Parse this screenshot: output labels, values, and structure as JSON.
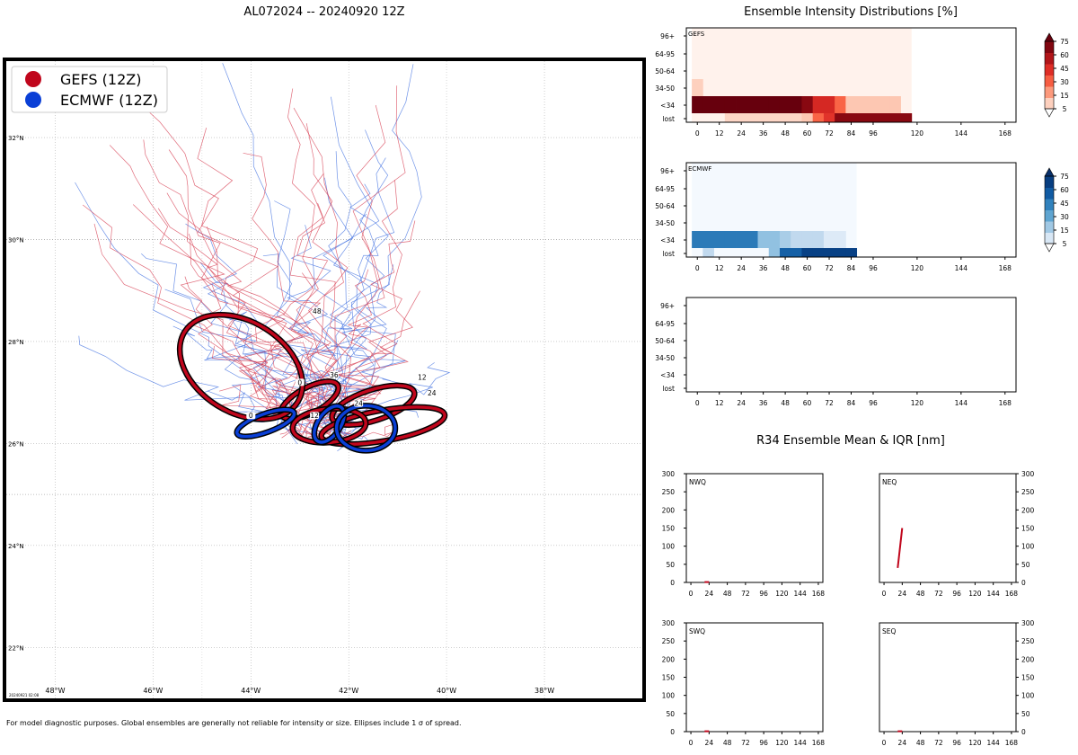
{
  "storm_title": "AL072024 -- 20240920 12Z",
  "footnote": "For model diagnostic purposes. Global ensembles are generally not reliable for intensity or size. Ellipses include 1 σ of spread.",
  "run_stamp": "20240921 02:08",
  "colors": {
    "gefs": "#c0061c",
    "ecmwf": "#0a3fd6",
    "gefs_track": "#d63a4e",
    "ecmwf_track": "#3f6fe0",
    "grid": "#b0b0b0"
  },
  "chart_data": [
    {
      "type": "map",
      "title": "AL072024 -- 20240920 12Z",
      "xlim": [
        -49,
        -36
      ],
      "ylim": [
        21,
        33.5
      ],
      "lon_ticks": [
        -48,
        -46,
        -44,
        -42,
        -40,
        -38
      ],
      "lon_tick_labels": [
        "48°W",
        "46°W",
        "44°W",
        "42°W",
        "40°W",
        "38°W"
      ],
      "lat_ticks": [
        22,
        24,
        26,
        28,
        30,
        32
      ],
      "lat_tick_labels": [
        "22°N",
        "24°N",
        "26°N",
        "28°N",
        "30°N",
        "32°N"
      ],
      "legend": {
        "placement": "top-left",
        "entries": [
          {
            "name": "GEFS (12Z)",
            "color": "#c0061c"
          },
          {
            "name": "ECMWF (12Z)",
            "color": "#0a3fd6"
          }
        ]
      },
      "ellipses": [
        {
          "model": "GEFS",
          "hour": "0",
          "lon": -42.8,
          "lat": 26.85,
          "rx_deg": 0.65,
          "ry_deg": 0.25,
          "angle": -28
        },
        {
          "model": "GEFS",
          "hour": "12",
          "lon": -41.5,
          "lat": 26.75,
          "rx_deg": 0.88,
          "ry_deg": 0.3,
          "angle": -18
        },
        {
          "model": "GEFS",
          "hour": "24",
          "lon": -41.3,
          "lat": 26.35,
          "rx_deg": 1.28,
          "ry_deg": 0.3,
          "angle": -10
        },
        {
          "model": "GEFS",
          "hour": "36",
          "lon": -42.4,
          "lat": 26.35,
          "rx_deg": 0.75,
          "ry_deg": 0.33,
          "angle": -5
        },
        {
          "model": "GEFS",
          "hour": "48",
          "lon": -44.2,
          "lat": 27.5,
          "rx_deg": 1.36,
          "ry_deg": 0.89,
          "angle": 32
        },
        {
          "model": "ECMWF",
          "hour": "0",
          "lon": -43.7,
          "lat": 26.4,
          "rx_deg": 0.62,
          "ry_deg": 0.18,
          "angle": -20
        },
        {
          "model": "ECMWF",
          "hour": "12",
          "lon": -42.4,
          "lat": 26.38,
          "rx_deg": 0.42,
          "ry_deg": 0.22,
          "angle": -55
        },
        {
          "model": "ECMWF",
          "hour": "24",
          "lon": -41.65,
          "lat": 26.3,
          "rx_deg": 0.6,
          "ry_deg": 0.44,
          "angle": 0
        }
      ],
      "ellipse_labels": [
        {
          "text": "0",
          "lon": -43.0,
          "lat": 27.2
        },
        {
          "text": "12",
          "lon": -40.5,
          "lat": 27.3
        },
        {
          "text": "24",
          "lon": -40.3,
          "lat": 26.99
        },
        {
          "text": "36",
          "lon": -42.3,
          "lat": 27.35
        },
        {
          "text": "48",
          "lon": -42.65,
          "lat": 28.6
        },
        {
          "text": "0",
          "lon": -44.0,
          "lat": 26.55
        },
        {
          "text": "12",
          "lon": -42.7,
          "lat": 26.55
        },
        {
          "text": "24",
          "lon": -41.8,
          "lat": 26.79
        }
      ]
    },
    {
      "type": "heatmap",
      "title": "Ensemble Intensity Distributions [%]",
      "panels": [
        {
          "label": "GEFS",
          "cmap": "reds",
          "x_ticks": [
            0,
            12,
            24,
            36,
            48,
            60,
            72,
            84,
            96,
            120,
            144,
            168
          ],
          "y_categories": [
            "lost",
            "<34",
            "34-50",
            "50-64",
            "64-95",
            "96+"
          ],
          "x_bins": [
            0,
            6,
            12,
            18,
            24,
            30,
            36,
            42,
            48,
            54,
            60,
            66,
            72,
            78,
            84,
            90,
            96,
            102,
            108,
            114
          ],
          "values": [
            [
              0,
              0,
              0,
              10,
              10,
              10,
              10,
              10,
              10,
              10,
              15,
              40,
              55,
              85,
              85,
              85,
              85,
              85,
              85,
              85
            ],
            [
              95,
              95,
              95,
              95,
              95,
              95,
              95,
              95,
              95,
              95,
              85,
              60,
              60,
              40,
              15,
              15,
              15,
              15,
              15,
              0
            ],
            [
              12,
              0,
              0,
              0,
              0,
              0,
              0,
              0,
              0,
              0,
              0,
              0,
              0,
              0,
              0,
              0,
              0,
              0,
              0,
              0
            ],
            [
              0,
              0,
              0,
              0,
              0,
              0,
              0,
              0,
              0,
              0,
              0,
              0,
              0,
              0,
              0,
              0,
              0,
              0,
              0,
              0
            ],
            [
              0,
              0,
              0,
              0,
              0,
              0,
              0,
              0,
              0,
              0,
              0,
              0,
              0,
              0,
              0,
              0,
              0,
              0,
              0,
              0
            ],
            [
              0,
              0,
              0,
              0,
              0,
              0,
              0,
              0,
              0,
              0,
              0,
              0,
              0,
              0,
              0,
              0,
              0,
              0,
              0,
              0
            ]
          ],
          "colorbar_ticks": [
            5,
            15,
            30,
            45,
            60,
            75
          ]
        },
        {
          "label": "ECMWF",
          "cmap": "blues",
          "x_ticks": [
            0,
            12,
            24,
            36,
            48,
            60,
            72,
            84,
            96,
            120,
            144,
            168
          ],
          "y_categories": [
            "lost",
            "<34",
            "34-50",
            "50-64",
            "64-95",
            "96+"
          ],
          "x_bins": [
            0,
            6,
            12,
            18,
            24,
            30,
            36,
            42,
            48,
            54,
            60,
            66,
            72,
            78,
            84
          ],
          "values": [
            [
              0,
              20,
              0,
              0,
              0,
              0,
              0,
              30,
              70,
              70,
              85,
              85,
              85,
              85,
              85
            ],
            [
              60,
              60,
              60,
              60,
              60,
              60,
              30,
              30,
              25,
              20,
              20,
              20,
              10,
              10,
              0
            ],
            [
              0,
              0,
              0,
              0,
              0,
              0,
              0,
              0,
              0,
              0,
              0,
              0,
              0,
              0,
              0
            ],
            [
              0,
              0,
              0,
              0,
              0,
              0,
              0,
              0,
              0,
              0,
              0,
              0,
              0,
              0,
              0
            ],
            [
              0,
              0,
              0,
              0,
              0,
              0,
              0,
              0,
              0,
              0,
              0,
              0,
              0,
              0,
              0
            ],
            [
              0,
              0,
              0,
              0,
              0,
              0,
              0,
              0,
              0,
              0,
              0,
              0,
              0,
              0,
              0
            ]
          ],
          "colorbar_ticks": [
            5,
            15,
            30,
            45,
            60,
            75
          ]
        },
        {
          "label": "",
          "cmap": "none",
          "x_ticks": [
            0,
            12,
            24,
            36,
            48,
            60,
            72,
            84,
            96,
            120,
            144,
            168
          ],
          "y_categories": [
            "lost",
            "<34",
            "34-50",
            "50-64",
            "64-95",
            "96+"
          ],
          "x_bins": [],
          "values": []
        }
      ]
    },
    {
      "type": "line",
      "title": "R34 Ensemble Mean & IQR [nm]",
      "xlim": [
        -6,
        174
      ],
      "ylim": [
        0,
        300
      ],
      "x_ticks": [
        0,
        24,
        48,
        72,
        96,
        120,
        144,
        168
      ],
      "y_ticks": [
        0,
        50,
        100,
        150,
        200,
        250,
        300
      ],
      "panels": [
        {
          "label": "NWQ",
          "y_side": "left",
          "series": [
            {
              "name": "GEFS",
              "x": [
                18,
                24
              ],
              "y": [
                1,
                1
              ]
            }
          ]
        },
        {
          "label": "NEQ",
          "y_side": "right",
          "series": [
            {
              "name": "GEFS",
              "x": [
                18,
                24
              ],
              "y": [
                40,
                150
              ]
            }
          ]
        },
        {
          "label": "SWQ",
          "y_side": "left",
          "series": [
            {
              "name": "GEFS",
              "x": [
                18,
                24
              ],
              "y": [
                1,
                1
              ]
            }
          ]
        },
        {
          "label": "SEQ",
          "y_side": "right",
          "series": [
            {
              "name": "GEFS",
              "x": [
                18,
                24
              ],
              "y": [
                1,
                1
              ]
            }
          ]
        }
      ]
    }
  ]
}
